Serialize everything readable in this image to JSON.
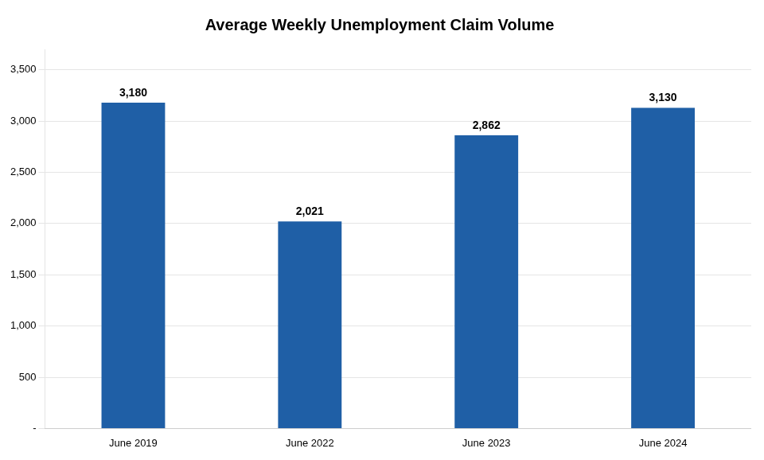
{
  "chart_data": {
    "type": "bar",
    "title": "Average Weekly Unemployment Claim Volume",
    "categories": [
      "June 2019",
      "June 2022",
      "June 2023",
      "June 2024"
    ],
    "values": [
      3180,
      2021,
      2862,
      3130
    ],
    "value_labels": [
      "3,180",
      "2,021",
      "2,862",
      "3,130"
    ],
    "data_labels": true,
    "color": "#1F5FA6",
    "ylim": [
      0,
      3700
    ],
    "yticks": [
      {
        "value": 0,
        "label": "-"
      },
      500,
      {
        "value": 1000,
        "label": "1,000"
      },
      {
        "value": 1500,
        "label": "1,500"
      },
      {
        "value": 2000,
        "label": "2,000"
      },
      {
        "value": 2500,
        "label": "2,500"
      },
      {
        "value": 3000,
        "label": "3,000"
      },
      {
        "value": 3500,
        "label": "3,500"
      }
    ],
    "grid": true
  }
}
